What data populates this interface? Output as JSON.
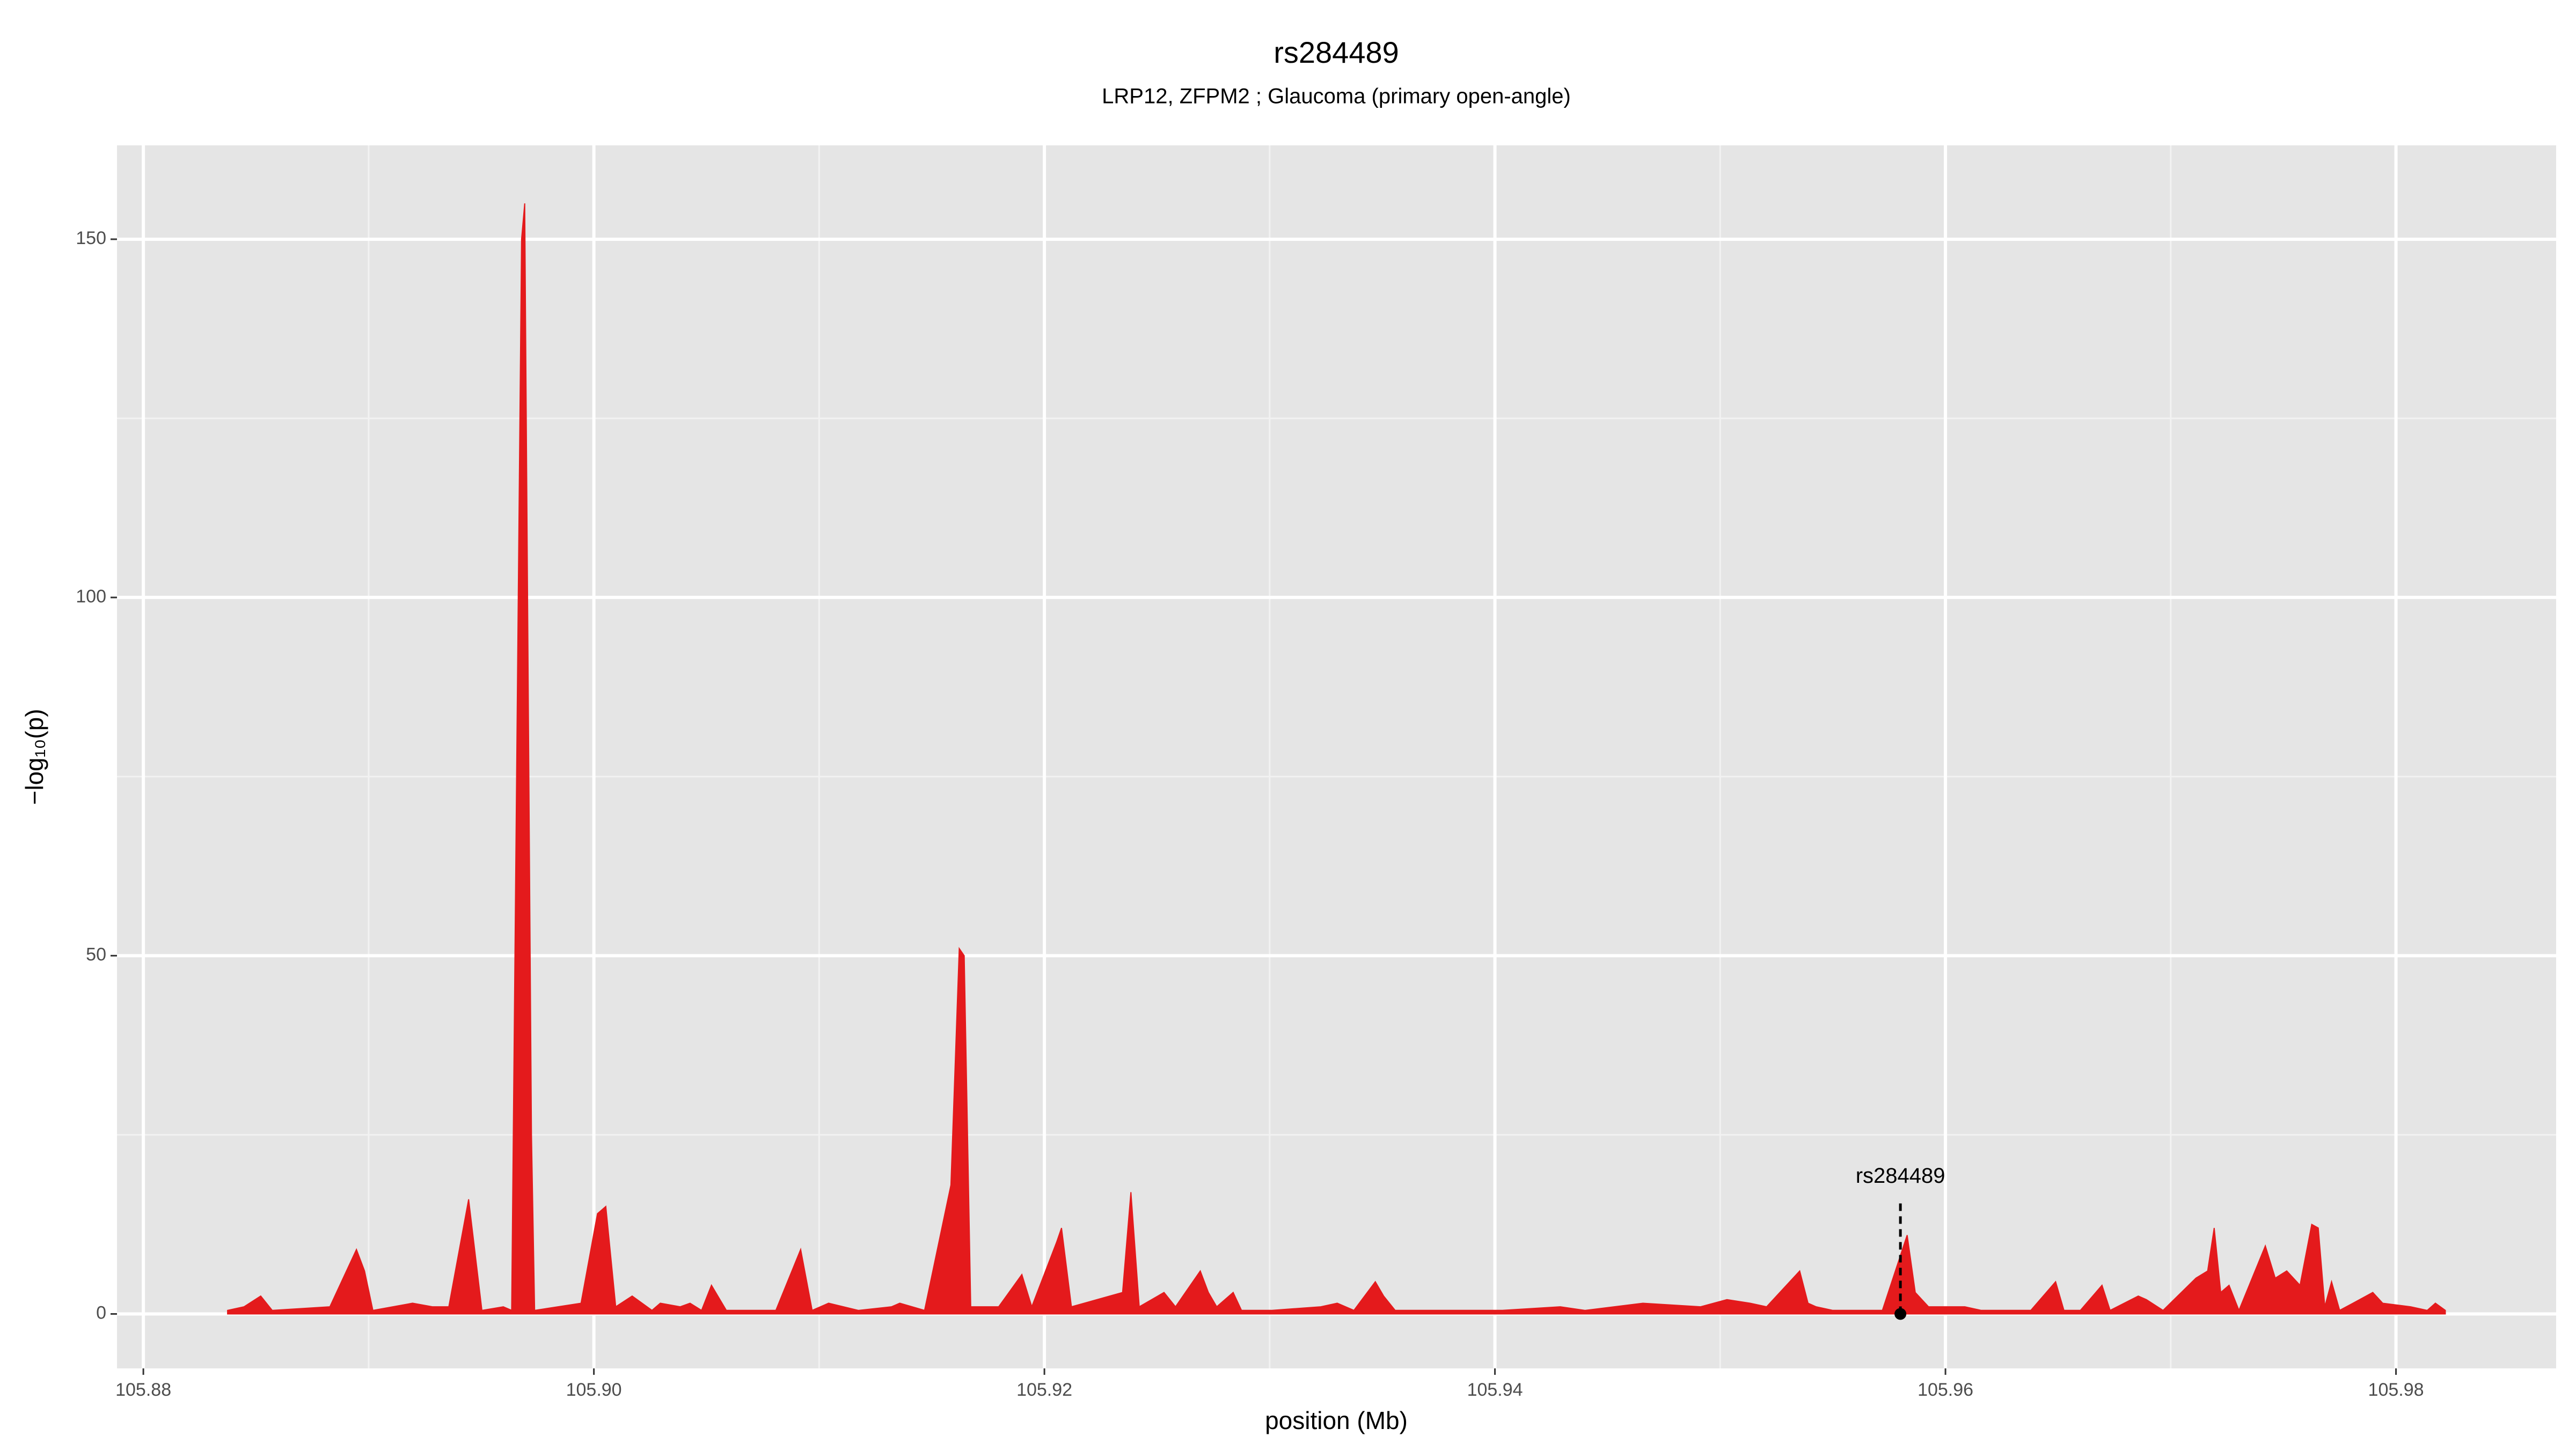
{
  "chart_data": {
    "type": "area",
    "title": "rs284489",
    "subtitle": "LRP12, ZFPM2 ; Glaucoma (primary open-angle)",
    "xlabel": "position (Mb)",
    "ylabel": "−log₁₀(p)",
    "color": "#e41a1c",
    "grid": true,
    "xlim": [
      105.87883,
      105.98711
    ],
    "ylim": [
      -7.6,
      163.1
    ],
    "xticks": [
      {
        "value": 105.88,
        "label": "105.88"
      },
      {
        "value": 105.9,
        "label": "105.90"
      },
      {
        "value": 105.92,
        "label": "105.92"
      },
      {
        "value": 105.94,
        "label": "105.94"
      },
      {
        "value": 105.96,
        "label": "105.96"
      },
      {
        "value": 105.98,
        "label": "105.98"
      }
    ],
    "yticks": [
      0,
      50,
      100,
      150
    ],
    "x": [
      105.88374,
      105.88447,
      105.88521,
      105.88572,
      105.88828,
      105.88946,
      105.88982,
      105.89019,
      105.89195,
      105.89283,
      105.89356,
      105.89444,
      105.89503,
      105.89598,
      105.89635,
      105.89679,
      105.89693,
      105.89723,
      105.89737,
      105.89943,
      105.90016,
      105.90053,
      105.90097,
      105.9017,
      105.90258,
      105.90295,
      105.90383,
      105.90427,
      105.90478,
      105.90522,
      105.90588,
      105.90808,
      105.90918,
      105.90969,
      105.91042,
      105.91174,
      105.91321,
      105.91358,
      105.91468,
      105.91585,
      105.91622,
      105.91644,
      105.91673,
      105.91797,
      105.919,
      105.91944,
      105.92054,
      105.92076,
      105.9212,
      105.92347,
      105.92384,
      105.92421,
      105.92531,
      105.92582,
      105.92692,
      105.92728,
      105.92765,
      105.92838,
      105.92875,
      105.93007,
      105.93227,
      105.933,
      105.93374,
      105.93469,
      105.93506,
      105.93557,
      105.9374,
      105.93813,
      105.94033,
      105.9429,
      105.944,
      105.94657,
      105.94913,
      105.9503,
      105.95133,
      105.95206,
      105.95353,
      105.9539,
      105.95426,
      105.955,
      105.9572,
      105.9583,
      105.95866,
      105.95925,
      105.96086,
      105.96159,
      105.96379,
      105.96489,
      105.96526,
      105.96599,
      105.96695,
      105.96731,
      105.96856,
      105.96892,
      105.96966,
      105.97112,
      105.97164,
      105.97193,
      105.97222,
      105.97259,
      105.97303,
      105.9742,
      105.97464,
      105.97515,
      105.97574,
      105.97626,
      105.97655,
      105.97684,
      105.97714,
      105.9775,
      105.97809,
      105.97897,
      105.97941,
      105.98065,
      105.98139,
      105.98175,
      105.98219
    ],
    "values": [
      0.5,
      1,
      2.5,
      0.5,
      1,
      9,
      6,
      0.5,
      1.5,
      1,
      1,
      16,
      0.5,
      1,
      0.5,
      150,
      155,
      25,
      0.5,
      1.5,
      14,
      15,
      1,
      2.5,
      0.5,
      1.5,
      1,
      1.5,
      0.5,
      4,
      0.5,
      0.5,
      9,
      0.5,
      1.5,
      0.5,
      1,
      1.5,
      0.5,
      18,
      51,
      50,
      1,
      1,
      5.5,
      1,
      10,
      12,
      1,
      3,
      17,
      1,
      3,
      1,
      6,
      3,
      1,
      3,
      0.5,
      0.5,
      1,
      1.5,
      0.5,
      4.5,
      2.5,
      0.5,
      0.5,
      0.5,
      0.5,
      1,
      0.5,
      1.5,
      1,
      2,
      1.5,
      1,
      6,
      1.5,
      1,
      0.5,
      0.5,
      11,
      3,
      1,
      1,
      0.5,
      0.5,
      4.5,
      0.5,
      0.5,
      4,
      0.5,
      2.5,
      2,
      0.5,
      5,
      6,
      12,
      3,
      4,
      0.5,
      9.5,
      5,
      6,
      4,
      12.5,
      12,
      1,
      4.5,
      0.5,
      1.5,
      3,
      1.5,
      1,
      0.5,
      1.5,
      0.5
    ],
    "annotation": {
      "text": "rs284489",
      "x": 105.958,
      "y": 0
    }
  }
}
